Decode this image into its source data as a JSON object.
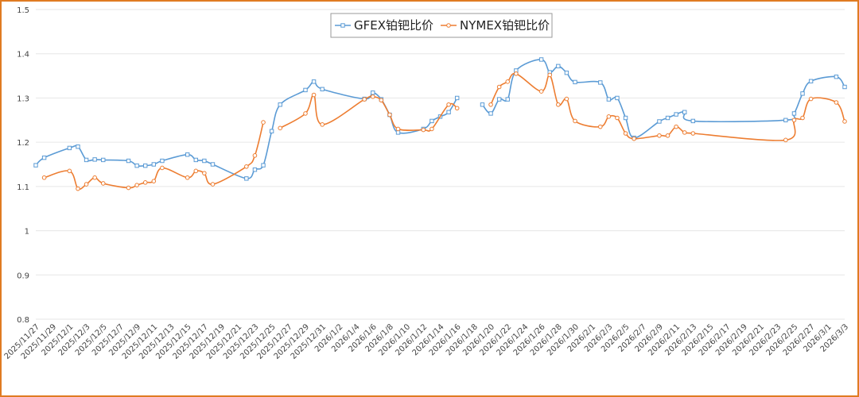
{
  "colors": {
    "frame": "#e07b22",
    "grid": "#e6e6e6",
    "series_1": "#5b9bd5",
    "series_2": "#ed7d31"
  },
  "chart_data": {
    "type": "line",
    "title": "",
    "xlabel": "",
    "ylabel": "",
    "ylim": [
      0.8,
      1.5
    ],
    "yticks": [
      "0.8",
      "0.9",
      "1",
      "1.1",
      "1.2",
      "1.3",
      "1.4",
      "1.5"
    ],
    "grid": true,
    "legend_position": "top-right",
    "x_range": [
      "2025-11-27",
      "2026-03-03"
    ],
    "xtick_labels": [
      "2025/11/27",
      "2025/11/29",
      "2025/12/1",
      "2025/12/3",
      "2025/12/5",
      "2025/12/7",
      "2025/12/9",
      "2025/12/11",
      "2025/12/13",
      "2025/12/15",
      "2025/12/17",
      "2025/12/19",
      "2025/12/21",
      "2025/12/23",
      "2025/12/25",
      "2025/12/27",
      "2025/12/29",
      "2025/12/31",
      "2026/1/2",
      "2026/1/4",
      "2026/1/6",
      "2026/1/8",
      "2026/1/10",
      "2026/1/12",
      "2026/1/14",
      "2026/1/16",
      "2026/1/18",
      "2026/1/20",
      "2026/1/22",
      "2026/1/24",
      "2026/1/26",
      "2026/1/28",
      "2026/1/30",
      "2026/2/1",
      "2026/2/3",
      "2026/2/5",
      "2026/2/7",
      "2026/2/9",
      "2026/2/11",
      "2026/2/13",
      "2026/2/15",
      "2026/2/17",
      "2026/2/19",
      "2026/2/21",
      "2026/2/23",
      "2026/2/25",
      "2026/2/27",
      "2026/3/1",
      "2026/3/3"
    ],
    "series": [
      {
        "name": "GFEX铂钯比价",
        "marker": "square",
        "segments": [
          [
            [
              "2025-11-27",
              1.148
            ],
            [
              "2025-11-28",
              1.165
            ],
            [
              "2025-12-01",
              1.187
            ],
            [
              "2025-12-02",
              1.19
            ],
            [
              "2025-12-03",
              1.16
            ],
            [
              "2025-12-04",
              1.161
            ],
            [
              "2025-12-05",
              1.16
            ],
            [
              "2025-12-08",
              1.158
            ],
            [
              "2025-12-09",
              1.147
            ],
            [
              "2025-12-10",
              1.147
            ],
            [
              "2025-12-11",
              1.15
            ],
            [
              "2025-12-12",
              1.158
            ],
            [
              "2025-12-15",
              1.172
            ],
            [
              "2025-12-16",
              1.16
            ],
            [
              "2025-12-17",
              1.158
            ],
            [
              "2025-12-18",
              1.15
            ],
            [
              "2025-12-22",
              1.118
            ],
            [
              "2025-12-23",
              1.138
            ],
            [
              "2025-12-24",
              1.148
            ],
            [
              "2025-12-25",
              1.225
            ],
            [
              "2025-12-26",
              1.285
            ],
            [
              "2025-12-29",
              1.318
            ],
            [
              "2025-12-30",
              1.337
            ],
            [
              "2025-12-31",
              1.32
            ],
            [
              "2026-01-05",
              1.298
            ],
            [
              "2026-01-06",
              1.312
            ],
            [
              "2026-01-07",
              1.297
            ],
            [
              "2026-01-08",
              1.262
            ],
            [
              "2026-01-09",
              1.222
            ],
            [
              "2026-01-12",
              1.23
            ],
            [
              "2026-01-13",
              1.248
            ],
            [
              "2026-01-14",
              1.258
            ],
            [
              "2026-01-15",
              1.268
            ],
            [
              "2026-01-16",
              1.3
            ]
          ],
          [
            [
              "2026-01-19",
              1.285
            ],
            [
              "2026-01-20",
              1.265
            ],
            [
              "2026-01-21",
              1.297
            ],
            [
              "2026-01-22",
              1.297
            ],
            [
              "2026-01-23",
              1.362
            ],
            [
              "2026-01-26",
              1.387
            ],
            [
              "2026-01-27",
              1.358
            ],
            [
              "2026-01-28",
              1.372
            ],
            [
              "2026-01-29",
              1.357
            ],
            [
              "2026-01-30",
              1.336
            ],
            [
              "2026-02-02",
              1.335
            ],
            [
              "2026-02-03",
              1.297
            ],
            [
              "2026-02-04",
              1.3
            ],
            [
              "2026-02-05",
              1.255
            ],
            [
              "2026-02-06",
              1.21
            ],
            [
              "2026-02-09",
              1.247
            ],
            [
              "2026-02-10",
              1.255
            ],
            [
              "2026-02-11",
              1.263
            ],
            [
              "2026-02-12",
              1.268
            ],
            [
              "2026-02-13",
              1.248
            ],
            [
              "2026-02-24",
              1.25
            ],
            [
              "2026-02-25",
              1.265
            ],
            [
              "2026-02-26",
              1.31
            ],
            [
              "2026-02-27",
              1.338
            ],
            [
              "2026-03-02",
              1.348
            ],
            [
              "2026-03-03",
              1.325
            ]
          ]
        ]
      },
      {
        "name": "NYMEX铂钯比价",
        "marker": "circle",
        "segments": [
          [
            [
              "2025-11-28",
              1.12
            ],
            [
              "2025-12-01",
              1.135
            ],
            [
              "2025-12-02",
              1.095
            ],
            [
              "2025-12-03",
              1.105
            ],
            [
              "2025-12-04",
              1.12
            ],
            [
              "2025-12-05",
              1.107
            ],
            [
              "2025-12-08",
              1.097
            ],
            [
              "2025-12-09",
              1.103
            ],
            [
              "2025-12-10",
              1.109
            ],
            [
              "2025-12-11",
              1.112
            ],
            [
              "2025-12-12",
              1.142
            ],
            [
              "2025-12-15",
              1.12
            ],
            [
              "2025-12-16",
              1.135
            ],
            [
              "2025-12-17",
              1.13
            ],
            [
              "2025-12-18",
              1.105
            ],
            [
              "2025-12-22",
              1.145
            ],
            [
              "2025-12-23",
              1.17
            ],
            [
              "2025-12-24",
              1.245
            ]
          ],
          [
            [
              "2025-12-26",
              1.232
            ],
            [
              "2025-12-29",
              1.265
            ],
            [
              "2025-12-30",
              1.307
            ],
            [
              "2025-12-31",
              1.24
            ],
            [
              "2026-01-05",
              1.297
            ],
            [
              "2026-01-06",
              1.303
            ],
            [
              "2026-01-07",
              1.295
            ],
            [
              "2026-01-08",
              1.262
            ],
            [
              "2026-01-09",
              1.23
            ],
            [
              "2026-01-12",
              1.228
            ],
            [
              "2026-01-13",
              1.23
            ],
            [
              "2026-01-15",
              1.285
            ],
            [
              "2026-01-16",
              1.277
            ]
          ],
          [
            [
              "2026-01-20",
              1.285
            ],
            [
              "2026-01-21",
              1.325
            ],
            [
              "2026-01-22",
              1.337
            ],
            [
              "2026-01-23",
              1.355
            ],
            [
              "2026-01-26",
              1.315
            ],
            [
              "2026-01-27",
              1.352
            ],
            [
              "2026-01-28",
              1.285
            ],
            [
              "2026-01-29",
              1.298
            ],
            [
              "2026-01-30",
              1.248
            ],
            [
              "2026-02-02",
              1.235
            ],
            [
              "2026-02-03",
              1.258
            ],
            [
              "2026-02-04",
              1.255
            ],
            [
              "2026-02-05",
              1.22
            ],
            [
              "2026-02-06",
              1.208
            ],
            [
              "2026-02-09",
              1.215
            ],
            [
              "2026-02-10",
              1.215
            ],
            [
              "2026-02-11",
              1.235
            ],
            [
              "2026-02-12",
              1.222
            ],
            [
              "2026-02-13",
              1.22
            ],
            [
              "2026-02-24",
              1.205
            ],
            [
              "2026-02-25",
              1.25
            ],
            [
              "2026-02-26",
              1.255
            ],
            [
              "2026-02-27",
              1.298
            ],
            [
              "2026-03-02",
              1.29
            ],
            [
              "2026-03-03",
              1.247
            ]
          ]
        ]
      }
    ]
  }
}
